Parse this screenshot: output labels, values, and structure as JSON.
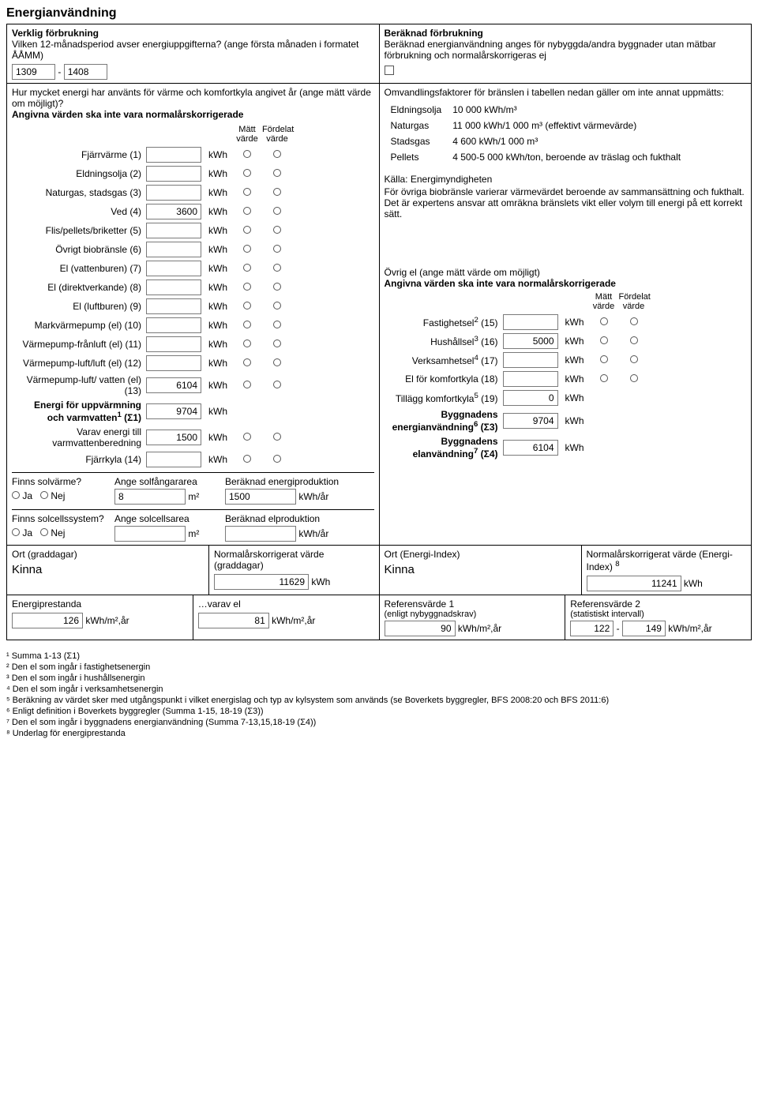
{
  "title": "Energianvändning",
  "left_header": {
    "verklig": "Verklig förbrukning",
    "period_q": "Vilken 12-månadsperiod avser energiuppgifterna? (ange första månaden i formatet ÅÅMM)",
    "from": "1309",
    "to": "1408",
    "dash": "-"
  },
  "right_header": {
    "beraknad": "Beräknad förbrukning",
    "text": "Beräknad energianvändning anges för nybyggda/andra byggnader utan mätbar förbrukning och normalårskorrigeras ej"
  },
  "hur_mycket": "Hur mycket energi har använts för värme och komfortkyla angivet år (ange mätt värde om möjligt)?",
  "angivna": "Angivna värden ska inte vara normalårskorrigerade",
  "cols": {
    "matt": "Mätt",
    "fordel": "Fördelat",
    "varde": "värde"
  },
  "kwh": "kWh",
  "rows": [
    {
      "label": "Fjärrvärme (1)",
      "value": ""
    },
    {
      "label": "Eldningsolja (2)",
      "value": ""
    },
    {
      "label": "Naturgas, stadsgas (3)",
      "value": ""
    },
    {
      "label": "Ved (4)",
      "value": "3600"
    },
    {
      "label": "Flis/pellets/briketter (5)",
      "value": ""
    },
    {
      "label": "Övrigt biobränsle (6)",
      "value": ""
    },
    {
      "label": "El (vattenburen) (7)",
      "value": ""
    },
    {
      "label": "El (direktverkande) (8)",
      "value": ""
    },
    {
      "label": "El (luftburen) (9)",
      "value": ""
    },
    {
      "label": "Markvärmepump (el) (10)",
      "value": ""
    },
    {
      "label": "Värmepump-frånluft (el) (11)",
      "value": ""
    },
    {
      "label": "Värmepump-luft/luft (el) (12)",
      "value": ""
    },
    {
      "label": "Värmepump-luft/ vatten (el) (13)",
      "value": "6104"
    }
  ],
  "sum_row": {
    "label_a": "Energi för uppvärmning",
    "label_b": "och varmvatten",
    "sup": "1",
    "suffix": " (Σ1)",
    "value": "9704"
  },
  "varav": {
    "label": "Varav energi till varmvattenberedning",
    "value": "1500"
  },
  "fjarrkyla": {
    "label": "Fjärrkyla (14)",
    "value": ""
  },
  "solvarme": {
    "q": "Finns solvärme?",
    "ja": "Ja",
    "nej": "Nej",
    "ange_area_label": "Ange solfångararea",
    "area": "8",
    "area_unit": "m²",
    "beraknad_label": "Beräknad energiproduktion",
    "prod": "1500",
    "prod_unit": "kWh/år"
  },
  "solcell": {
    "q": "Finns solcellssystem?",
    "ja": "Ja",
    "nej": "Nej",
    "ange_area_label": "Ange solcellsarea",
    "area": "",
    "area_unit": "m²",
    "beraknad_label": "Beräknad elproduktion",
    "prod": "",
    "prod_unit": "kWh/år"
  },
  "conv": {
    "intro": "Omvandlingsfaktorer för bränslen i tabellen nedan gäller om inte annat uppmätts:",
    "rows": [
      [
        "Eldningsolja",
        "10 000 kWh/m³"
      ],
      [
        "Naturgas",
        "11 000 kWh/1 000 m³ (effektivt värmevärde)"
      ],
      [
        "Stadsgas",
        "4 600 kWh/1 000 m³"
      ],
      [
        "Pellets",
        "4 500-5 000 kWh/ton, beroende av träslag och fukthalt"
      ]
    ],
    "kalla": "Källa: Energimyndigheten",
    "note": "För övriga biobränsle varierar värmevärdet beroende av sammansättning och fukthalt. Det är expertens ansvar att omräkna bränslets vikt eller volym till energi på ett korrekt sätt."
  },
  "ovrig_el": {
    "title": "Övrig el (ange mätt värde om möjligt)",
    "angivna": "Angivna värden ska inte vara normalårskorrigerade",
    "rows": [
      {
        "label": "Fastighetsel",
        "sup": "2",
        "suffix": " (15)",
        "value": ""
      },
      {
        "label": "Hushållsel",
        "sup": "3",
        "suffix": " (16)",
        "value": "5000"
      },
      {
        "label": "Verksamhetsel",
        "sup": "4",
        "suffix": " (17)",
        "value": ""
      },
      {
        "label": "El för komfortkyla (18)",
        "sup": "",
        "suffix": "",
        "value": ""
      }
    ],
    "tillagg": {
      "label": "Tillägg komfortkyla",
      "sup": "5",
      "suffix": " (19)",
      "value": "0"
    },
    "bygg_energi": {
      "label": "Byggnadens energianvändning",
      "sup": "6",
      "suffix": " (Σ3)",
      "value": "9704"
    },
    "bygg_elan": {
      "label": "Byggnadens elanvändning",
      "sup": "7",
      "suffix": " (Σ4)",
      "value": "6104"
    }
  },
  "bottom": {
    "ort_grad_label": "Ort (graddagar)",
    "ort_grad_val": "Kinna",
    "norm_grad_label": "Normalårskorrigerat värde (graddagar)",
    "norm_grad_val": "11629",
    "kwh": "kWh",
    "ort_ei_label": "Ort (Energi-Index)",
    "ort_ei_val": "Kinna",
    "norm_ei_label": "Normalårskorrigerat värde (Energi-Index)",
    "norm_ei_sup": "8",
    "norm_ei_val": "11241",
    "ep_label": "Energiprestanda",
    "ep_val": "126",
    "unit": "kWh/m²,år",
    "varav_el_label": "…varav el",
    "varav_el_val": "81",
    "ref1_label": "Referensvärde 1",
    "ref1_sub": "(enligt nybyggnadskrav)",
    "ref1_val": "90",
    "ref2_label": "Referensvärde 2",
    "ref2_sub": "(statistiskt intervall)",
    "ref2_from": "122",
    "ref2_to": "149"
  },
  "footnotes": [
    "¹ Summa 1-13 (Σ1)",
    "² Den el som ingår i fastighetsenergin",
    "³ Den el som ingår i hushållsenergin",
    "⁴ Den el som ingår i verksamhetsenergin",
    "⁵ Beräkning av värdet sker med utgångspunkt i vilket energislag och typ av kylsystem som används (se Boverkets byggregler, BFS 2008:20 och BFS 2011:6)",
    "⁶ Enligt definition i Boverkets byggregler (Summa 1-15, 18-19 (Σ3))",
    "⁷ Den el som ingår i byggnadens energianvändning (Summa 7-13,15,18-19 (Σ4))",
    "⁸ Underlag för energiprestanda"
  ]
}
